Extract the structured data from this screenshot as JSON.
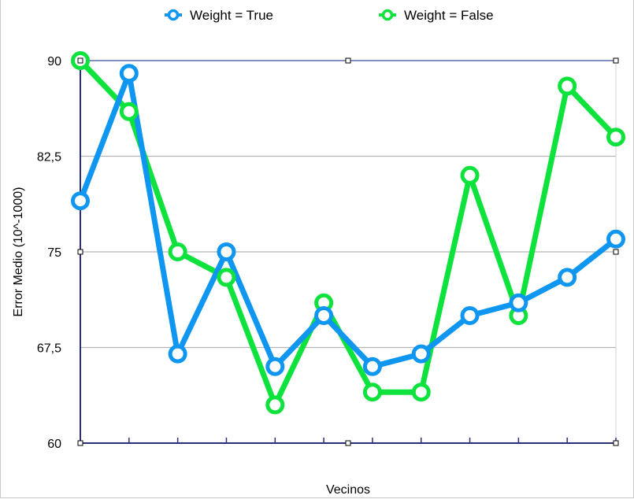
{
  "chart_data": {
    "type": "line",
    "title": "",
    "xlabel": "Vecinos",
    "ylabel": "Error Medio (10^-1000)",
    "ylim": [
      60,
      90
    ],
    "yticks": [
      60,
      67.5,
      75,
      82.5,
      90
    ],
    "ytick_labels": [
      "60",
      "67,5",
      "75",
      "82,5",
      "90"
    ],
    "x": [
      1,
      2,
      3,
      4,
      5,
      6,
      7,
      8,
      9,
      10,
      11,
      12
    ],
    "grid": true,
    "legend_position": "top",
    "series": [
      {
        "name": "Weight = True",
        "color": "#0e96f0",
        "values": [
          79,
          89,
          67,
          75,
          66,
          70,
          66,
          67,
          70,
          71,
          73,
          76
        ]
      },
      {
        "name": "Weight = False",
        "color": "#0ee23c",
        "values": [
          90,
          86,
          75,
          73,
          63,
          71,
          64,
          64,
          81,
          70,
          88,
          84
        ]
      }
    ]
  }
}
